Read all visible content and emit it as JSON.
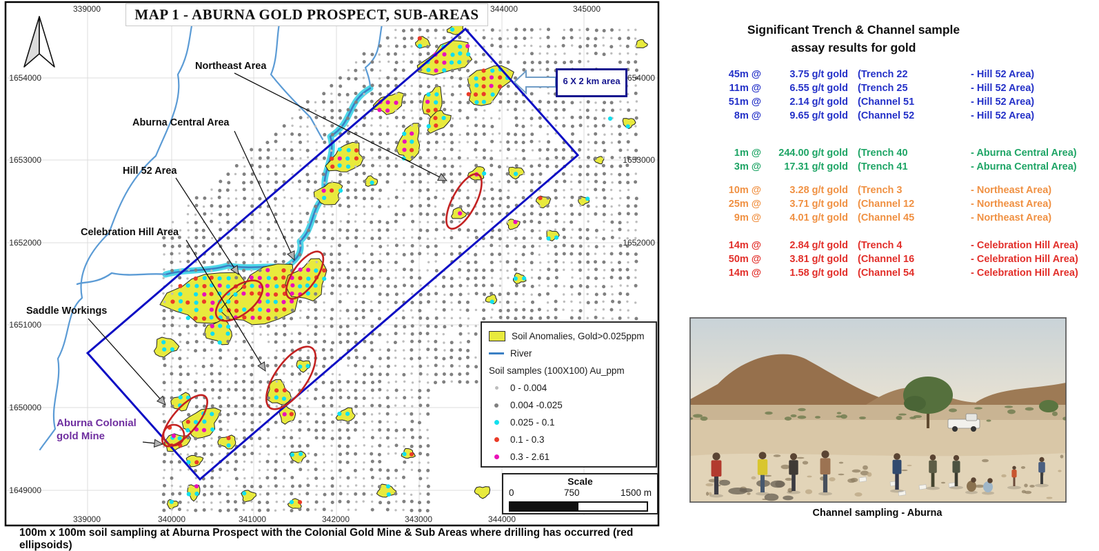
{
  "figure": {
    "title": "MAP 1 - ABURNA GOLD PROSPECT, SUB-AREAS",
    "callout": "6 X 2 km area",
    "caption": "100m x 100m soil sampling at Aburna Prospect with the Colonial Gold Mine & Sub Areas where drilling has occurred (red ellipsoids)",
    "area_labels": {
      "northeast": "Northeast Area",
      "aburna_central": "Aburna Central Area",
      "hill52": "Hill 52 Area",
      "celebration": "Celebration Hill Area",
      "saddle": "Saddle Workings"
    },
    "colonial_label": {
      "line1": "Aburna Colonial",
      "line2": "gold Mine"
    },
    "axis": {
      "top": [
        "339000",
        "344000",
        "345000"
      ],
      "bottom": [
        "339000",
        "340000",
        "341000",
        "342000",
        "343000",
        "344000"
      ],
      "left": [
        "1654000",
        "1653000",
        "1652000",
        "1651000",
        "1650000",
        "1649000"
      ],
      "right": [
        "1654000",
        "1653000",
        "1652000"
      ]
    },
    "legend": {
      "anomaly": "Soil Anomalies, Gold>0.025ppm",
      "river": "River",
      "samples_header": "Soil samples (100X100) Au_ppm",
      "classes": [
        {
          "color": "#bdbdbd",
          "size": 5,
          "label": "0 - 0.004"
        },
        {
          "color": "#7f7f7f",
          "size": 6,
          "label": "0.004 -0.025"
        },
        {
          "color": "#12dfee",
          "size": 7,
          "label": "0.025 - 0.1"
        },
        {
          "color": "#ea3b28",
          "size": 7,
          "label": "0.1 - 0.3"
        },
        {
          "color": "#ea10b8",
          "size": 7,
          "label": "0.3 - 2.61"
        }
      ]
    },
    "scale": {
      "title": "Scale",
      "t0": "0",
      "t1": "750",
      "t2": "1500 m"
    }
  },
  "assay": {
    "title_line1": "Significant Trench & Channel sample",
    "title_line2": "assay results for gold",
    "groups": [
      {
        "name": "hill-52",
        "color": "#2431c8",
        "rows": [
          [
            "45m @",
            "3.75 g/t gold",
            "(Trench 22",
            "- Hill 52 Area)"
          ],
          [
            "11m @",
            "6.55 g/t gold",
            "(Trench 25",
            "- Hill 52 Area)"
          ],
          [
            "51m @",
            "2.14 g/t gold",
            "(Channel 51",
            "- Hill 52 Area)"
          ],
          [
            "8m @",
            "9.65 g/t gold",
            "(Channel 52",
            "- Hill 52 Area)"
          ]
        ]
      },
      {
        "name": "aburna-central",
        "color": "#1fa566",
        "rows": [
          [
            "1m @",
            "244.00 g/t gold",
            "(Trench 40",
            "- Aburna Central Area)"
          ],
          [
            "3m @",
            "17.31 g/t gold",
            "(Trench 41",
            "- Aburna Central Area)"
          ]
        ]
      },
      {
        "name": "northeast",
        "color": "#f09143",
        "rows": [
          [
            "10m @",
            "3.28 g/t gold",
            "(Trench 3",
            "- Northeast Area)"
          ],
          [
            "25m @",
            "3.71 g/t gold",
            "(Channel 12",
            "- Northeast Area)"
          ],
          [
            "9m @",
            "4.01 g/t gold",
            "(Channel 45",
            "- Northeast Area)"
          ]
        ]
      },
      {
        "name": "celebration-hill",
        "color": "#e22f2a",
        "rows": [
          [
            "14m @",
            "2.84 g/t gold",
            "(Trench 4",
            "- Celebration Hill Area)"
          ],
          [
            "50m @",
            "3.81 g/t gold",
            "(Channel 16",
            "- Celebration Hill Area)"
          ],
          [
            "14m @",
            "1.58 g/t gold",
            "(Channel 54",
            "- Celebration Hill Area)"
          ]
        ]
      }
    ]
  },
  "photo": {
    "caption": "Channel sampling - Aburna"
  },
  "colors": {
    "anomaly_fill": "#e8ea3d",
    "box_blue": "#0d0dc4",
    "ellipse_red": "#c32222",
    "river_core": "#3b80c4",
    "river_casing": "#3fd4e6",
    "purple_label": "#7030a0"
  }
}
